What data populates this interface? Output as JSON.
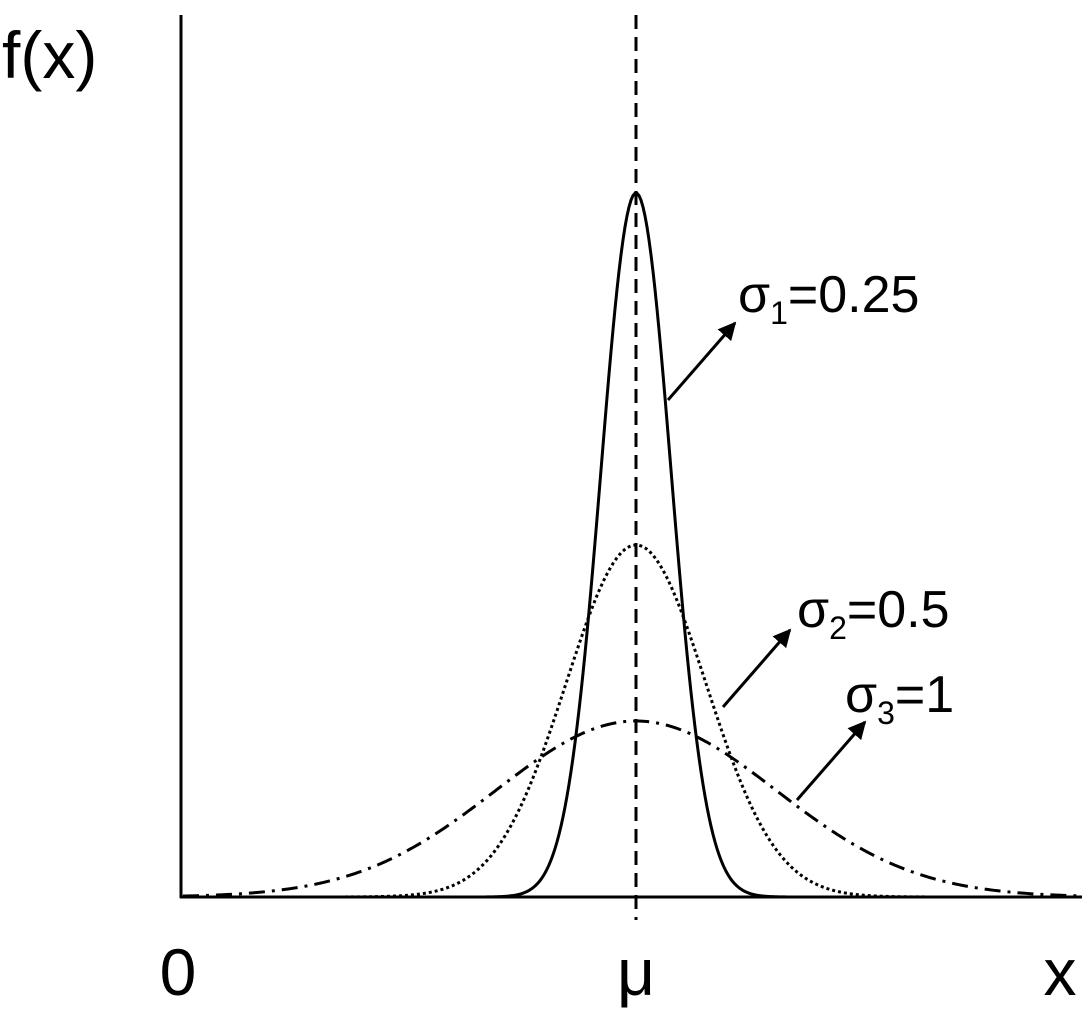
{
  "axes": {
    "y_label": "f(x)",
    "origin_label": "0",
    "mean_label": "μ",
    "x_label": "x"
  },
  "curves": [
    {
      "symbol": "σ",
      "subscript": "1",
      "equals": "=",
      "sigma": 0.25,
      "style": "solid"
    },
    {
      "symbol": "σ",
      "subscript": "2",
      "equals": "=",
      "sigma": 0.5,
      "style": "dotted"
    },
    {
      "symbol": "σ",
      "subscript": "3",
      "equals": "=",
      "sigma": 1,
      "style": "dashdot"
    }
  ]
}
